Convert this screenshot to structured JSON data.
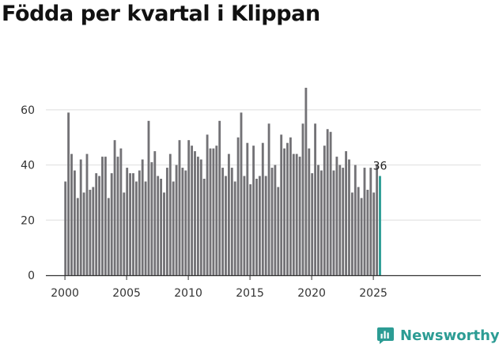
{
  "page": {
    "title": "Födda per kvartal i Klippan"
  },
  "brand": {
    "name": "Newsworthy",
    "icon": "newsworthy-logo-icon",
    "color": "#2c9c94"
  },
  "chart_data": {
    "type": "bar",
    "title": "Födda per kvartal i Klippan",
    "xlabel": "",
    "ylabel": "",
    "ylim": [
      0,
      70
    ],
    "yticks": [
      0,
      20,
      40,
      60
    ],
    "xticks": [
      2000,
      2005,
      2010,
      2015,
      2020,
      2025
    ],
    "x_start": 2000,
    "quarters_per_year": 4,
    "bar_color": "#737276",
    "highlight_color": "#2a9d94",
    "grid": true,
    "last_value_label": "36",
    "series": [
      {
        "name": "Födda",
        "values": [
          34,
          59,
          44,
          38,
          28,
          42,
          30,
          44,
          31,
          32,
          37,
          36,
          43,
          43,
          28,
          37,
          49,
          43,
          46,
          30,
          39,
          37,
          37,
          34,
          38,
          42,
          34,
          56,
          41,
          45,
          36,
          35,
          30,
          39,
          44,
          34,
          40,
          49,
          39,
          38,
          49,
          47,
          45,
          43,
          42,
          35,
          51,
          46,
          46,
          47,
          56,
          39,
          36,
          44,
          39,
          34,
          50,
          59,
          36,
          48,
          33,
          47,
          35,
          36,
          48,
          36,
          55,
          39,
          40,
          32,
          51,
          46,
          48,
          50,
          44,
          44,
          43,
          55,
          68,
          46,
          37,
          55,
          40,
          38,
          47,
          53,
          52,
          38,
          43,
          40,
          39,
          45,
          42,
          30,
          40,
          32,
          28,
          39,
          31,
          39,
          30,
          40,
          36
        ]
      }
    ]
  }
}
